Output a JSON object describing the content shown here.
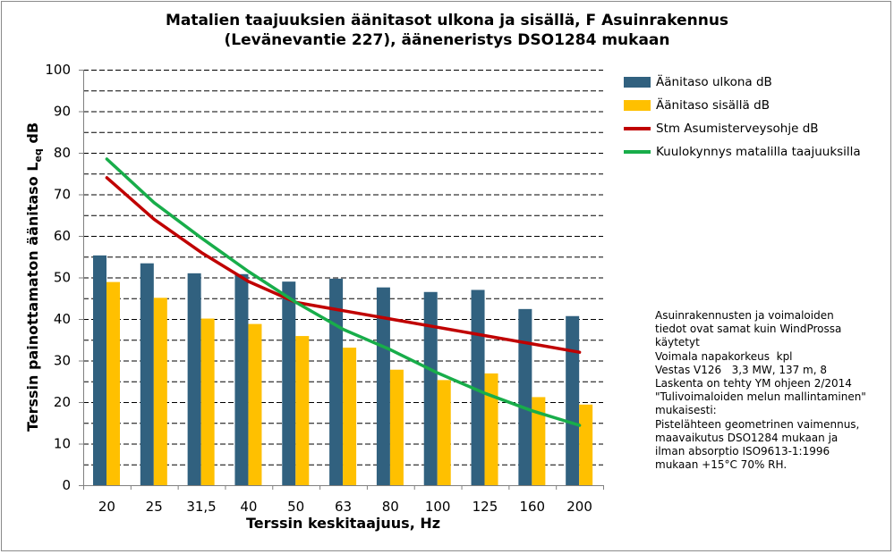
{
  "colors": {
    "outdoor": "#31617f",
    "indoor": "#ffc000",
    "stm": "#c00000",
    "hearing": "#18ad4a",
    "grid": "#000000",
    "axis": "#808080",
    "frame": "#8a8a8a"
  },
  "chart_data": {
    "type": "bar",
    "title": [
      "Matalien taajuuksien äänitasot ulkona ja sisällä, F Asuinrakennus",
      "(Levänevantie 227), ääneneristys DSO1284 mukaan"
    ],
    "xlabel": "Terssin keskitaajuus, Hz",
    "ylabel": {
      "main": "Terssin painottamaton äänitaso L",
      "sub": "eq",
      "suffix": " dB"
    },
    "categories": [
      "20",
      "25",
      "31,5",
      "40",
      "50",
      "63",
      "80",
      "100",
      "125",
      "160",
      "200"
    ],
    "y_ticks": [
      "0",
      "10",
      "20",
      "30",
      "40",
      "50",
      "60",
      "70",
      "80",
      "90",
      "100"
    ],
    "ylim": [
      0,
      100
    ],
    "grid": "dashed at 5 dB intervals",
    "legend_position": "right",
    "series": [
      {
        "name": "Äänitaso ulkona dB",
        "kind": "bar",
        "values": [
          55.3,
          53.4,
          51.0,
          50.8,
          49.0,
          49.7,
          47.6,
          46.5,
          47.0,
          42.4,
          40.7
        ]
      },
      {
        "name": "Äänitaso sisällä dB",
        "kind": "bar",
        "values": [
          48.9,
          45.1,
          40.1,
          38.8,
          35.9,
          33.1,
          27.8,
          25.3,
          26.9,
          21.2,
          19.4
        ]
      },
      {
        "name": "Stm Asumisterveysohje dB",
        "kind": "line",
        "values": [
          74,
          64,
          56,
          49,
          44,
          42,
          40,
          38,
          36,
          34,
          32
        ]
      },
      {
        "name": "Kuulokynnys matalilla taajuuksilla",
        "kind": "line",
        "values": [
          78.5,
          68,
          59.5,
          51.4,
          44,
          37.5,
          32.6,
          27,
          22.1,
          17.9,
          14.4
        ]
      }
    ]
  },
  "note_lines": [
    "Asuinrakennusten ja voimaloiden",
    "tiedot ovat samat kuin WindProssa",
    "käytetyt",
    "Voimala napakorkeus  kpl",
    "Vestas V126   3,3 MW, 137 m, 8",
    "Laskenta on tehty YM ohjeen 2/2014",
    "\"Tulivoimaloiden melun mallintaminen\"",
    "mukaisesti:",
    "Pistelähteen geometrinen vaimennus,",
    "maavaikutus DSO1284 mukaan ja",
    "ilman absorptio ISO9613-1:1996",
    "mukaan +15°C 70% RH."
  ]
}
